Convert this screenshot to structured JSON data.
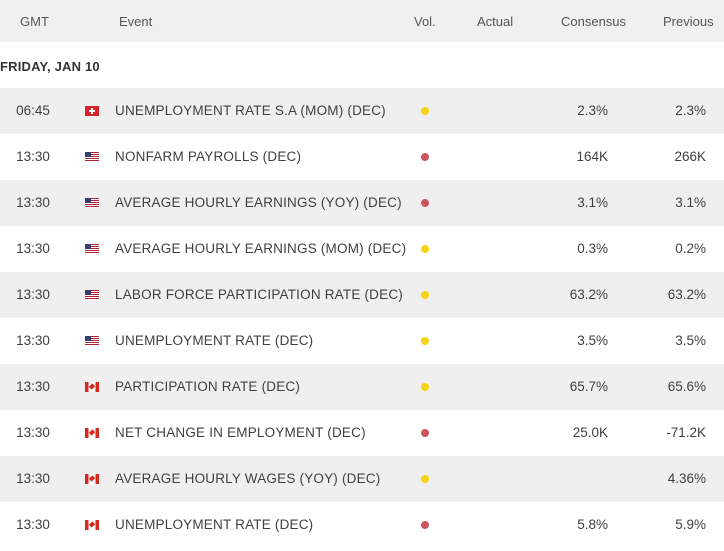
{
  "header": {
    "gmt": "GMT",
    "event": "Event",
    "vol": "Vol.",
    "actual": "Actual",
    "consensus": "Consensus",
    "previous": "Previous"
  },
  "day": {
    "label": "FRIDAY, JAN 10"
  },
  "colors": {
    "medium": "#f5d312",
    "high": "#c95562"
  },
  "rows": [
    {
      "time": "06:45",
      "country": "CH",
      "event": "UNEMPLOYMENT RATE S.A (MOM) (DEC)",
      "volatility": "medium",
      "actual": "",
      "consensus": "2.3%",
      "previous": "2.3%"
    },
    {
      "time": "13:30",
      "country": "US",
      "event": "NONFARM PAYROLLS (DEC)",
      "volatility": "high",
      "actual": "",
      "consensus": "164K",
      "previous": "266K"
    },
    {
      "time": "13:30",
      "country": "US",
      "event": "AVERAGE HOURLY EARNINGS (YOY) (DEC)",
      "volatility": "high",
      "actual": "",
      "consensus": "3.1%",
      "previous": "3.1%"
    },
    {
      "time": "13:30",
      "country": "US",
      "event": "AVERAGE HOURLY EARNINGS (MOM) (DEC)",
      "volatility": "medium",
      "actual": "",
      "consensus": "0.3%",
      "previous": "0.2%"
    },
    {
      "time": "13:30",
      "country": "US",
      "event": "LABOR FORCE PARTICIPATION RATE (DEC)",
      "volatility": "medium",
      "actual": "",
      "consensus": "63.2%",
      "previous": "63.2%"
    },
    {
      "time": "13:30",
      "country": "US",
      "event": "UNEMPLOYMENT RATE (DEC)",
      "volatility": "medium",
      "actual": "",
      "consensus": "3.5%",
      "previous": "3.5%"
    },
    {
      "time": "13:30",
      "country": "CA",
      "event": "PARTICIPATION RATE (DEC)",
      "volatility": "medium",
      "actual": "",
      "consensus": "65.7%",
      "previous": "65.6%"
    },
    {
      "time": "13:30",
      "country": "CA",
      "event": "NET CHANGE IN EMPLOYMENT (DEC)",
      "volatility": "high",
      "actual": "",
      "consensus": "25.0K",
      "previous": "-71.2K"
    },
    {
      "time": "13:30",
      "country": "CA",
      "event": "AVERAGE HOURLY WAGES (YOY) (DEC)",
      "volatility": "medium",
      "actual": "",
      "consensus": "",
      "previous": "4.36%"
    },
    {
      "time": "13:30",
      "country": "CA",
      "event": "UNEMPLOYMENT RATE (DEC)",
      "volatility": "high",
      "actual": "",
      "consensus": "5.8%",
      "previous": "5.9%"
    }
  ]
}
